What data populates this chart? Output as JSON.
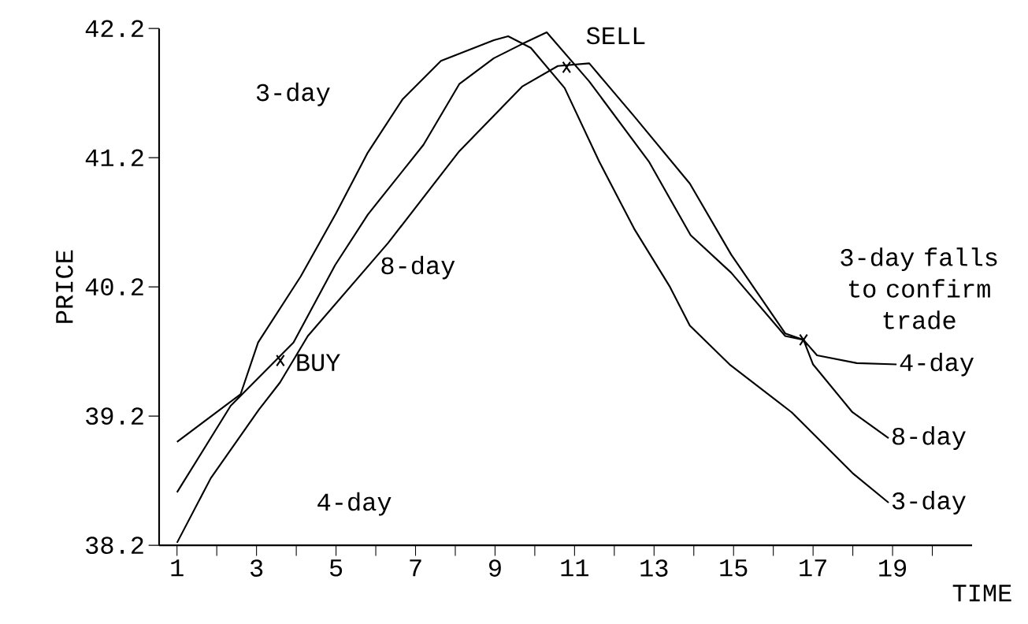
{
  "chart_data": {
    "type": "line",
    "xlabel": "TIME",
    "ylabel": "PRICE",
    "xlim": [
      0.55,
      21
    ],
    "ylim": [
      38.2,
      42.2
    ],
    "xticks": [
      1,
      {
        "value": 2,
        "label": null
      },
      3,
      {
        "value": 4,
        "label": null
      },
      5,
      {
        "value": 6,
        "label": null
      },
      7,
      {
        "value": 8,
        "label": null
      },
      9,
      {
        "value": 10,
        "label": null
      },
      11,
      {
        "value": 12,
        "label": null
      },
      13,
      {
        "value": 14,
        "label": null
      },
      15,
      {
        "value": 16,
        "label": null
      },
      17,
      {
        "value": 18,
        "label": null
      },
      19,
      {
        "value": 20,
        "label": null
      }
    ],
    "yticks": [
      38.2,
      39.2,
      40.2,
      41.2,
      42.2
    ],
    "marker": "none",
    "line_style": "solid",
    "series": [
      {
        "name": "3-day",
        "color": "#000000",
        "x": [
          1,
          2.6,
          3.04,
          4.11,
          5.0,
          5.8,
          6.67,
          7.64,
          8.97,
          9.33,
          9.9,
          10.75,
          11.62,
          12.5,
          13.4,
          13.9,
          14.9,
          16.46,
          17.99,
          18.9
        ],
        "values": [
          39.0,
          39.37,
          39.77,
          40.28,
          40.77,
          41.24,
          41.65,
          41.95,
          42.11,
          42.14,
          42.05,
          41.74,
          41.17,
          40.65,
          40.2,
          39.9,
          39.6,
          39.23,
          38.76,
          38.53
        ]
      },
      {
        "name": "4-day",
        "color": "#000000",
        "x": [
          1,
          2.35,
          3.93,
          4.98,
          5.8,
          7.2,
          8.1,
          8.97,
          9.68,
          10.3,
          11.37,
          12.87,
          13.92,
          14.94,
          16.3,
          16.76,
          17.1,
          18.1,
          19.1
        ],
        "values": [
          38.61,
          39.28,
          39.77,
          40.37,
          40.76,
          41.3,
          41.77,
          41.97,
          42.08,
          42.17,
          41.79,
          41.17,
          40.6,
          40.31,
          39.82,
          39.79,
          39.67,
          39.61,
          39.6
        ]
      },
      {
        "name": "8-day",
        "color": "#000000",
        "x": [
          1,
          1.85,
          3.06,
          3.59,
          4.29,
          6.31,
          8.1,
          9.68,
          10.58,
          11.37,
          12.5,
          13.9,
          14.94,
          16.3,
          16.76,
          17.0,
          17.99,
          18.9
        ],
        "values": [
          38.22,
          38.72,
          39.25,
          39.46,
          39.82,
          40.54,
          41.25,
          41.75,
          41.91,
          41.93,
          41.52,
          41.0,
          40.45,
          39.84,
          39.79,
          39.6,
          39.23,
          39.03
        ]
      }
    ],
    "annotations": [
      {
        "text": "SELL",
        "x": 10.8,
        "y": 41.9
      },
      {
        "text": "BUY",
        "x": 3.6,
        "y": 39.63
      },
      {
        "text": "3-day falls to confirm trade",
        "x": 16.76,
        "y": 39.79
      }
    ]
  }
}
